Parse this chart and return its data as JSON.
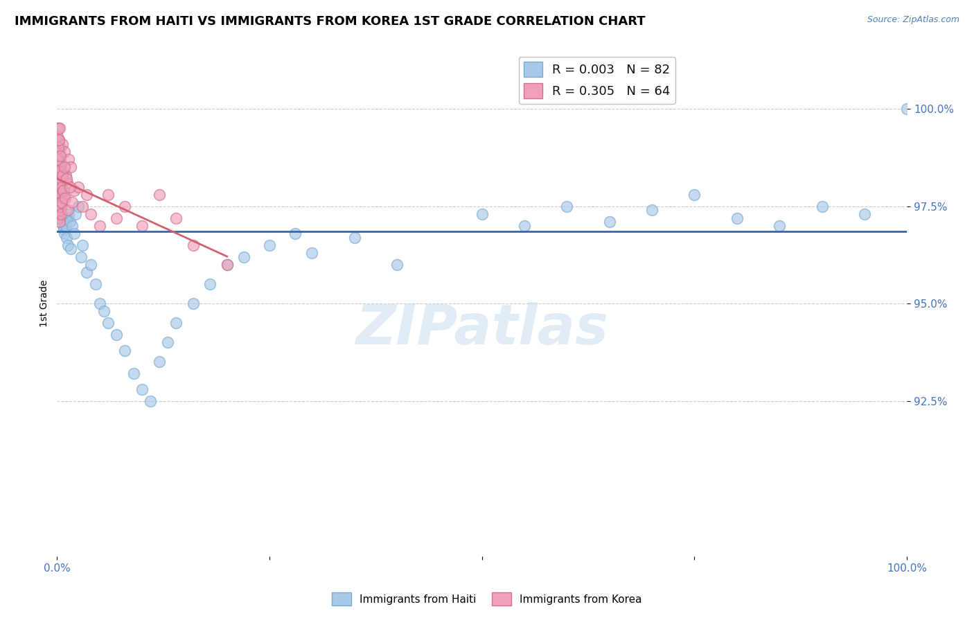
{
  "title": "IMMIGRANTS FROM HAITI VS IMMIGRANTS FROM KOREA 1ST GRADE CORRELATION CHART",
  "source": "Source: ZipAtlas.com",
  "ylabel": "1st Grade",
  "xlim": [
    0.0,
    100.0
  ],
  "ylim": [
    88.5,
    101.5
  ],
  "yticks": [
    92.5,
    95.0,
    97.5,
    100.0
  ],
  "xticks": [
    0.0,
    25.0,
    50.0,
    75.0,
    100.0
  ],
  "xtick_labels": [
    "0.0%",
    "",
    "",
    "",
    "100.0%"
  ],
  "ytick_labels": [
    "92.5%",
    "95.0%",
    "97.5%",
    "100.0%"
  ],
  "title_fontsize": 13,
  "axis_label_fontsize": 10,
  "tick_fontsize": 11,
  "legend_fontsize": 13,
  "watermark": "ZIPatlas",
  "haiti_color": "#A8C8E8",
  "korea_color": "#F0A0B8",
  "haiti_edge": "#7AAAD0",
  "korea_edge": "#D07090",
  "haiti_R": 0.003,
  "haiti_N": 82,
  "korea_R": 0.305,
  "korea_N": 64,
  "haiti_line_color": "#3464B4",
  "korea_line_color": "#D06070",
  "haiti_scatter_x": [
    0.05,
    0.08,
    0.1,
    0.12,
    0.15,
    0.15,
    0.18,
    0.2,
    0.2,
    0.22,
    0.25,
    0.25,
    0.28,
    0.3,
    0.3,
    0.32,
    0.35,
    0.35,
    0.38,
    0.4,
    0.4,
    0.42,
    0.45,
    0.48,
    0.5,
    0.5,
    0.55,
    0.6,
    0.65,
    0.7,
    0.8,
    0.9,
    1.0,
    1.1,
    1.2,
    1.3,
    1.4,
    1.5,
    1.6,
    1.8,
    2.0,
    2.2,
    2.5,
    2.8,
    3.0,
    3.5,
    4.0,
    4.5,
    5.0,
    5.5,
    6.0,
    7.0,
    8.0,
    9.0,
    10.0,
    11.0,
    12.0,
    13.0,
    14.0,
    16.0,
    18.0,
    20.0,
    22.0,
    25.0,
    28.0,
    30.0,
    35.0,
    40.0,
    50.0,
    55.0,
    60.0,
    65.0,
    70.0,
    75.0,
    80.0,
    85.0,
    90.0,
    95.0,
    100.0,
    0.06,
    0.09,
    0.14
  ],
  "haiti_scatter_y": [
    97.8,
    98.2,
    97.5,
    98.6,
    98.0,
    99.0,
    97.3,
    98.8,
    97.6,
    98.4,
    97.9,
    98.5,
    97.2,
    97.7,
    98.3,
    97.5,
    97.8,
    98.1,
    97.4,
    97.6,
    97.9,
    97.3,
    97.7,
    97.5,
    97.4,
    97.8,
    97.3,
    97.2,
    97.1,
    97.0,
    96.9,
    96.8,
    97.0,
    96.7,
    97.2,
    96.5,
    97.3,
    97.1,
    96.4,
    97.0,
    96.8,
    97.3,
    97.5,
    96.2,
    96.5,
    95.8,
    96.0,
    95.5,
    95.0,
    94.8,
    94.5,
    94.2,
    93.8,
    93.2,
    92.8,
    92.5,
    93.5,
    94.0,
    94.5,
    95.0,
    95.5,
    96.0,
    96.2,
    96.5,
    96.8,
    96.3,
    96.7,
    96.0,
    97.3,
    97.0,
    97.5,
    97.1,
    97.4,
    97.8,
    97.2,
    97.0,
    97.5,
    97.3,
    100.0,
    98.9,
    99.2,
    99.5
  ],
  "korea_scatter_x": [
    0.05,
    0.08,
    0.1,
    0.12,
    0.15,
    0.15,
    0.18,
    0.2,
    0.2,
    0.22,
    0.25,
    0.25,
    0.28,
    0.3,
    0.3,
    0.32,
    0.35,
    0.38,
    0.4,
    0.45,
    0.5,
    0.55,
    0.6,
    0.7,
    0.8,
    0.9,
    1.0,
    1.2,
    1.4,
    1.6,
    2.0,
    2.5,
    3.0,
    3.5,
    4.0,
    5.0,
    6.0,
    7.0,
    8.0,
    10.0,
    12.0,
    14.0,
    16.0,
    20.0,
    0.06,
    0.09,
    0.13,
    0.17,
    0.23,
    0.27,
    0.33,
    0.37,
    0.42,
    0.48,
    0.52,
    0.58,
    0.65,
    0.75,
    0.85,
    0.95,
    1.1,
    1.3,
    1.5,
    1.8
  ],
  "korea_scatter_y": [
    97.5,
    97.8,
    97.2,
    97.9,
    98.3,
    99.5,
    97.6,
    98.0,
    97.3,
    97.7,
    98.5,
    99.2,
    97.1,
    97.8,
    98.8,
    97.4,
    97.6,
    99.0,
    97.5,
    98.2,
    98.6,
    97.8,
    99.1,
    98.4,
    97.7,
    98.9,
    98.3,
    98.1,
    98.7,
    98.5,
    97.9,
    98.0,
    97.5,
    97.8,
    97.3,
    97.0,
    97.8,
    97.2,
    97.5,
    97.0,
    97.8,
    97.2,
    96.5,
    96.0,
    99.3,
    98.7,
    99.0,
    98.4,
    99.2,
    98.1,
    99.5,
    97.5,
    98.8,
    97.3,
    98.0,
    97.6,
    98.3,
    97.9,
    98.5,
    97.7,
    98.2,
    97.4,
    98.0,
    97.6
  ]
}
